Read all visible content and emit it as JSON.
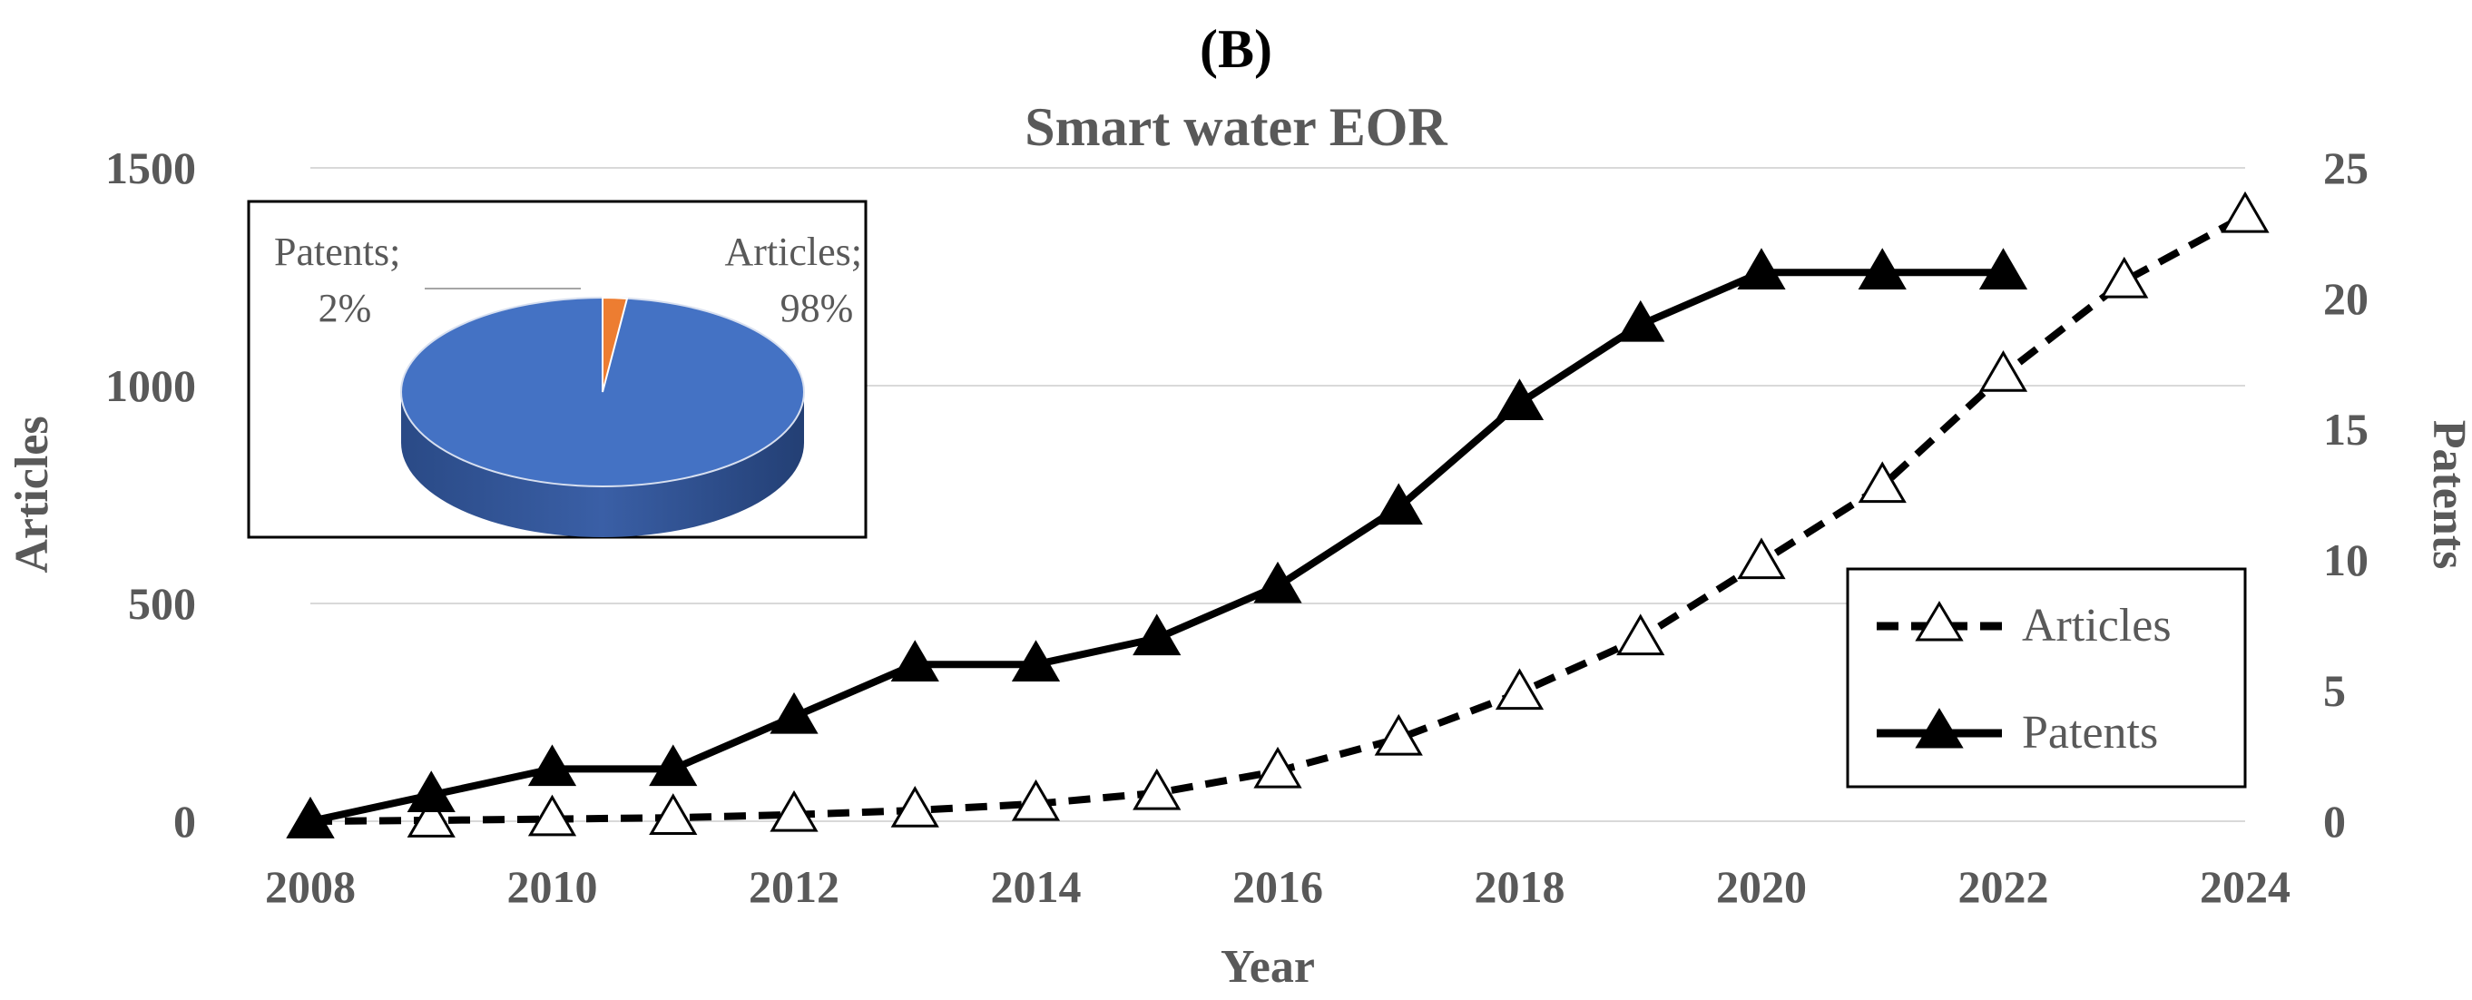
{
  "chart_data": {
    "type": "line",
    "panel_label": "(B)",
    "title": "Smart water EOR",
    "xlabel": "Year",
    "ylabel_left": "Articles",
    "ylabel_right": "Patents",
    "x_ticks": [
      2008,
      2010,
      2012,
      2014,
      2016,
      2018,
      2020,
      2022,
      2024
    ],
    "xlim": [
      2008,
      2024
    ],
    "ylim_left": [
      0,
      1500
    ],
    "y_ticks_left": [
      0,
      500,
      1000,
      1500
    ],
    "ylim_right": [
      0,
      25
    ],
    "y_ticks_right": [
      0,
      5,
      10,
      15,
      20,
      25
    ],
    "gridlines": true,
    "legend_position": "right-middle",
    "series": [
      {
        "name": "Articles",
        "axis": "left",
        "style": "dashed",
        "marker": "open-triangle",
        "x": [
          2008,
          2009,
          2010,
          2011,
          2012,
          2013,
          2014,
          2015,
          2016,
          2017,
          2018,
          2019,
          2020,
          2021,
          2022,
          2023,
          2024
        ],
        "values": [
          0,
          2,
          5,
          8,
          15,
          25,
          40,
          65,
          115,
          190,
          295,
          420,
          595,
          770,
          1025,
          1240,
          1390
        ]
      },
      {
        "name": "Patents",
        "axis": "right",
        "style": "solid",
        "marker": "filled-triangle",
        "x": [
          2008,
          2009,
          2010,
          2011,
          2012,
          2013,
          2014,
          2015,
          2016,
          2017,
          2018,
          2019,
          2020,
          2021,
          2022
        ],
        "values": [
          0,
          1,
          2,
          2,
          4,
          6,
          6,
          7,
          9,
          12,
          16,
          19,
          21,
          21,
          21
        ]
      }
    ],
    "inset_pie": {
      "type": "pie",
      "slices": [
        {
          "label": "Articles",
          "value": 98,
          "label_text": "Articles;",
          "percent_text": "98%",
          "color": "#4472c4"
        },
        {
          "label": "Patents",
          "value": 2,
          "label_text": "Patents;",
          "percent_text": "2%",
          "color": "#ed7d31"
        }
      ]
    }
  },
  "colors": {
    "text": "#595959",
    "grid": "#d9d9d9",
    "line": "#000000",
    "pie_blue": "#4472c4",
    "pie_blue_dark": "#2f528f",
    "pie_orange": "#ed7d31"
  }
}
